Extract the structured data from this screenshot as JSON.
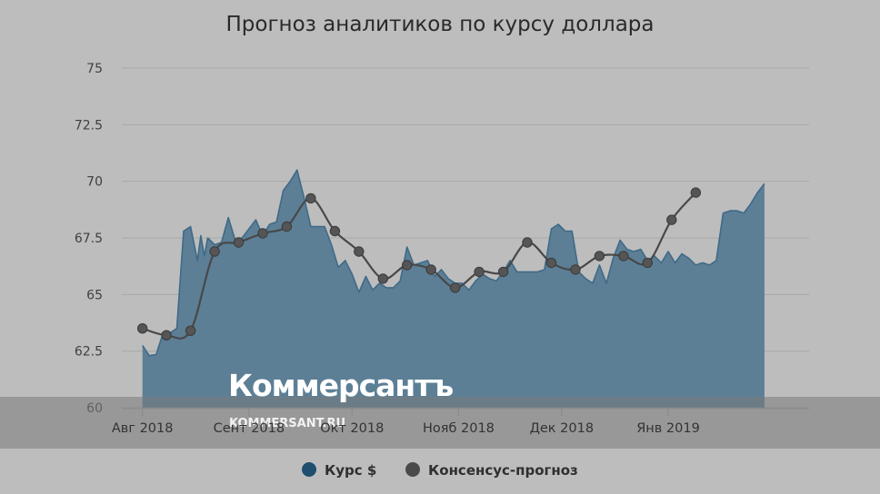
{
  "chart_data": {
    "type": "area",
    "title": "Прогноз аналитиков по курсу доллара",
    "xlabel": "",
    "ylabel": "",
    "ylim": [
      60,
      75
    ],
    "y_ticks": [
      "75",
      "72.5",
      "70",
      "67.5",
      "65",
      "62.5",
      "60"
    ],
    "x_ticks": [
      "Авг 2018",
      "Сент 2018",
      "Окт 2018",
      "Нояб 2018",
      "Дек 2018",
      "Янв 2019"
    ],
    "x_tick_dates": [
      "2018-08-01",
      "2018-09-01",
      "2018-10-01",
      "2018-11-01",
      "2018-12-01",
      "2019-01-01"
    ],
    "grid": true,
    "legend_position": "bottom-center",
    "series": [
      {
        "name": "Курс $",
        "style": "area",
        "color": "#5c7f96",
        "line_color": "#3f6a88",
        "legend_color": "#1f4e6e",
        "points": [
          [
            "2018-08-01",
            62.75
          ],
          [
            "2018-08-03",
            62.3
          ],
          [
            "2018-08-05",
            62.35
          ],
          [
            "2018-08-07",
            63.3
          ],
          [
            "2018-08-09",
            63.3
          ],
          [
            "2018-08-11",
            63.5
          ],
          [
            "2018-08-13",
            67.8
          ],
          [
            "2018-08-15",
            68.0
          ],
          [
            "2018-08-17",
            66.5
          ],
          [
            "2018-08-18",
            67.6
          ],
          [
            "2018-08-19",
            66.7
          ],
          [
            "2018-08-20",
            67.5
          ],
          [
            "2018-08-22",
            67.2
          ],
          [
            "2018-08-24",
            67.3
          ],
          [
            "2018-08-26",
            68.4
          ],
          [
            "2018-08-28",
            67.4
          ],
          [
            "2018-08-30",
            67.5
          ],
          [
            "2018-09-01",
            67.9
          ],
          [
            "2018-09-03",
            68.3
          ],
          [
            "2018-09-05",
            67.6
          ],
          [
            "2018-09-07",
            68.1
          ],
          [
            "2018-09-09",
            68.2
          ],
          [
            "2018-09-11",
            69.6
          ],
          [
            "2018-09-13",
            70.0
          ],
          [
            "2018-09-15",
            70.5
          ],
          [
            "2018-09-17",
            69.3
          ],
          [
            "2018-09-19",
            68.0
          ],
          [
            "2018-09-21",
            68.0
          ],
          [
            "2018-09-23",
            68.0
          ],
          [
            "2018-09-25",
            67.2
          ],
          [
            "2018-09-27",
            66.2
          ],
          [
            "2018-09-29",
            66.5
          ],
          [
            "2018-10-01",
            65.9
          ],
          [
            "2018-10-03",
            65.1
          ],
          [
            "2018-10-05",
            65.8
          ],
          [
            "2018-10-07",
            65.2
          ],
          [
            "2018-10-09",
            65.5
          ],
          [
            "2018-10-11",
            65.3
          ],
          [
            "2018-10-13",
            65.3
          ],
          [
            "2018-10-15",
            65.6
          ],
          [
            "2018-10-17",
            67.1
          ],
          [
            "2018-10-19",
            66.3
          ],
          [
            "2018-10-21",
            66.4
          ],
          [
            "2018-10-23",
            66.5
          ],
          [
            "2018-10-25",
            65.8
          ],
          [
            "2018-10-27",
            66.1
          ],
          [
            "2018-10-29",
            65.7
          ],
          [
            "2018-10-31",
            65.5
          ],
          [
            "2018-11-02",
            65.5
          ],
          [
            "2018-11-04",
            65.2
          ],
          [
            "2018-11-06",
            65.6
          ],
          [
            "2018-11-08",
            65.9
          ],
          [
            "2018-11-10",
            65.7
          ],
          [
            "2018-11-12",
            65.6
          ],
          [
            "2018-11-14",
            66.0
          ],
          [
            "2018-11-16",
            66.5
          ],
          [
            "2018-11-18",
            66.0
          ],
          [
            "2018-11-20",
            66.0
          ],
          [
            "2018-11-22",
            66.0
          ],
          [
            "2018-11-24",
            66.0
          ],
          [
            "2018-11-26",
            66.1
          ],
          [
            "2018-11-28",
            67.9
          ],
          [
            "2018-11-30",
            68.1
          ],
          [
            "2018-12-02",
            67.8
          ],
          [
            "2018-12-04",
            67.8
          ],
          [
            "2018-12-06",
            66.0
          ],
          [
            "2018-12-08",
            65.7
          ],
          [
            "2018-12-10",
            65.5
          ],
          [
            "2018-12-12",
            66.3
          ],
          [
            "2018-12-14",
            65.5
          ],
          [
            "2018-12-16",
            66.6
          ],
          [
            "2018-12-18",
            67.4
          ],
          [
            "2018-12-20",
            67.0
          ],
          [
            "2018-12-22",
            66.9
          ],
          [
            "2018-12-24",
            67.0
          ],
          [
            "2018-12-26",
            66.5
          ],
          [
            "2018-12-28",
            66.7
          ],
          [
            "2018-12-30",
            66.4
          ],
          [
            "2019-01-01",
            66.9
          ],
          [
            "2019-01-03",
            66.4
          ],
          [
            "2019-01-05",
            66.8
          ],
          [
            "2019-01-07",
            66.6
          ],
          [
            "2019-01-09",
            66.3
          ],
          [
            "2019-01-11",
            66.4
          ],
          [
            "2019-01-13",
            66.3
          ],
          [
            "2019-01-15",
            66.5
          ],
          [
            "2019-01-17",
            68.6
          ],
          [
            "2019-01-19",
            68.7
          ],
          [
            "2019-01-21",
            68.7
          ],
          [
            "2019-01-23",
            68.6
          ],
          [
            "2019-01-25",
            69.0
          ],
          [
            "2019-01-27",
            69.5
          ],
          [
            "2019-01-29",
            69.9
          ]
        ]
      },
      {
        "name": "Консенсус-прогноз",
        "style": "line-markers",
        "color": "#484848",
        "marker_color": "#555555",
        "points": [
          [
            "2018-08-01",
            63.5
          ],
          [
            "2018-08-08",
            63.2
          ],
          [
            "2018-08-15",
            63.4
          ],
          [
            "2018-08-22",
            66.9
          ],
          [
            "2018-08-29",
            67.3
          ],
          [
            "2018-09-05",
            67.7
          ],
          [
            "2018-09-12",
            68.0
          ],
          [
            "2018-09-19",
            69.25
          ],
          [
            "2018-09-26",
            67.8
          ],
          [
            "2018-10-03",
            66.9
          ],
          [
            "2018-10-10",
            65.7
          ],
          [
            "2018-10-17",
            66.3
          ],
          [
            "2018-10-24",
            66.1
          ],
          [
            "2018-10-31",
            65.3
          ],
          [
            "2018-11-07",
            66.0
          ],
          [
            "2018-11-14",
            66.0
          ],
          [
            "2018-11-21",
            67.3
          ],
          [
            "2018-11-28",
            66.4
          ],
          [
            "2018-12-05",
            66.1
          ],
          [
            "2018-12-12",
            66.7
          ],
          [
            "2018-12-19",
            66.7
          ],
          [
            "2018-12-26",
            66.4
          ],
          [
            "2019-01-02",
            68.3
          ],
          [
            "2019-01-09",
            69.5
          ]
        ]
      }
    ]
  },
  "watermark": {
    "name": "Коммерсантъ",
    "url": "KOMMERSANT.RU"
  }
}
